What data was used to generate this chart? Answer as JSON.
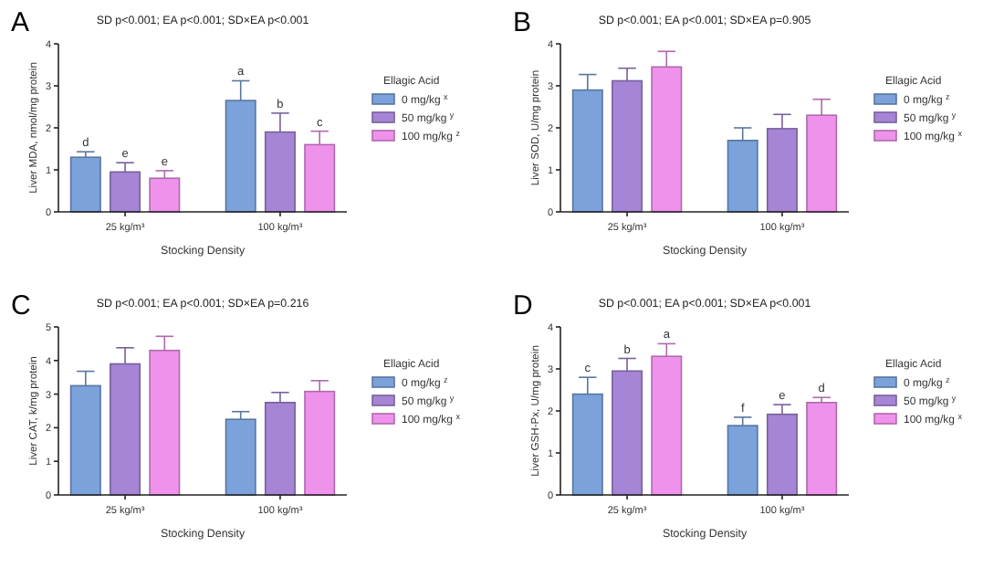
{
  "chart_data": [
    {
      "type": "bar",
      "title": "SD p<0.001; EA p<0.001; SD×EA p<0.001",
      "annotations": [
        "A"
      ],
      "xlabel": "Stocking Density",
      "ylabel": "Liver MDA, nmol/mg protein",
      "categories": [
        "25 kg/m³",
        "100 kg/m³"
      ],
      "ylim": [
        0,
        4
      ],
      "yticks": [
        0,
        1,
        2,
        3,
        4
      ],
      "legend": "right",
      "legend_title": "Ellagic Acid",
      "series": [
        {
          "name": "0 mg/kg $^{x}$",
          "color": "#7ba2da",
          "values": [
            1.3,
            2.65
          ],
          "errors": [
            [
              1.3,
              1.43
            ],
            [
              2.65,
              3.12
            ]
          ],
          "value_labels": [
            "d",
            "a"
          ]
        },
        {
          "name": "50 mg/kg $^{y}$",
          "color": "#a685d6",
          "values": [
            0.95,
            1.9
          ],
          "errors": [
            [
              0.95,
              1.17
            ],
            [
              1.9,
              2.35
            ]
          ],
          "value_labels": [
            "e",
            "b"
          ]
        },
        {
          "name": "100 mg/kg $^{z}$",
          "color": "#ef92ec",
          "values": [
            0.8,
            1.6
          ],
          "errors": [
            [
              0.8,
              0.98
            ],
            [
              1.6,
              1.92
            ]
          ],
          "value_labels": [
            "e",
            "c"
          ]
        }
      ]
    },
    {
      "type": "bar",
      "title": "SD p<0.001; EA p<0.001; SD×EA p=0.905",
      "annotations": [
        "B"
      ],
      "xlabel": "Stocking Density",
      "ylabel": "Liver SOD, U/mg protein",
      "categories": [
        "25 kg/m³",
        "100 kg/m³"
      ],
      "ylim": [
        0,
        4
      ],
      "yticks": [
        0,
        1,
        2,
        3,
        4
      ],
      "legend": "right",
      "legend_title": "Ellagic Acid",
      "series": [
        {
          "name": "0 mg/kg $^{z}$",
          "color": "#7ba2da",
          "values": [
            2.9,
            1.7
          ],
          "errors": [
            [
              2.9,
              3.27
            ],
            [
              1.7,
              2.0
            ]
          ]
        },
        {
          "name": "50 mg/kg $^{y}$",
          "color": "#a685d6",
          "values": [
            3.12,
            1.98
          ],
          "errors": [
            [
              3.12,
              3.42
            ],
            [
              1.98,
              2.32
            ]
          ]
        },
        {
          "name": "100 mg/kg $^{x}$",
          "color": "#ef92ec",
          "values": [
            3.45,
            2.3
          ],
          "errors": [
            [
              3.45,
              3.82
            ],
            [
              2.3,
              2.68
            ]
          ]
        }
      ]
    },
    {
      "type": "bar",
      "title": "SD p<0.001; EA p<0.001; SD×EA p=0.216",
      "annotations": [
        "C"
      ],
      "xlabel": "Stocking Density",
      "ylabel": "Liver CAT, k/mg protein",
      "categories": [
        "25 kg/m³",
        "100 kg/m³"
      ],
      "ylim": [
        0,
        5
      ],
      "yticks": [
        0,
        1,
        2,
        3,
        4,
        5
      ],
      "legend": "right",
      "legend_title": "Ellagic Acid",
      "series": [
        {
          "name": "0 mg/kg $^{z}$",
          "color": "#7ba2da",
          "values": [
            3.25,
            2.25
          ],
          "errors": [
            [
              3.25,
              3.68
            ],
            [
              2.25,
              2.48
            ]
          ]
        },
        {
          "name": "50 mg/kg $^{y}$",
          "color": "#a685d6",
          "values": [
            3.9,
            2.75
          ],
          "errors": [
            [
              3.9,
              4.38
            ],
            [
              2.75,
              3.05
            ]
          ]
        },
        {
          "name": "100 mg/kg $^{x}$",
          "color": "#ef92ec",
          "values": [
            4.3,
            3.08
          ],
          "errors": [
            [
              4.3,
              4.72
            ],
            [
              3.08,
              3.4
            ]
          ]
        }
      ]
    },
    {
      "type": "bar",
      "title": "SD p<0.001; EA p<0.001; SD×EA p<0.001",
      "annotations": [
        "D"
      ],
      "xlabel": "Stocking Density",
      "ylabel": "Liver GSH-Px, U/mg protein",
      "categories": [
        "25 kg/m³",
        "100 kg/m³"
      ],
      "ylim": [
        0,
        4
      ],
      "yticks": [
        0,
        1,
        2,
        3,
        4
      ],
      "legend": "right",
      "legend_title": "Ellagic Acid",
      "series": [
        {
          "name": "0 mg/kg $^{z}$",
          "color": "#7ba2da",
          "values": [
            2.4,
            1.65
          ],
          "errors": [
            [
              2.4,
              2.8
            ],
            [
              1.65,
              1.85
            ]
          ],
          "value_labels": [
            "c",
            "f"
          ]
        },
        {
          "name": "50 mg/kg $^{y}$",
          "color": "#a685d6",
          "values": [
            2.95,
            1.92
          ],
          "errors": [
            [
              2.95,
              3.25
            ],
            [
              1.92,
              2.15
            ]
          ],
          "value_labels": [
            "b",
            "e"
          ]
        },
        {
          "name": "100 mg/kg $^{x}$",
          "color": "#ef92ec",
          "values": [
            3.3,
            2.2
          ],
          "errors": [
            [
              3.3,
              3.6
            ],
            [
              2.2,
              2.32
            ]
          ],
          "value_labels": [
            "a",
            "d"
          ]
        }
      ]
    }
  ]
}
